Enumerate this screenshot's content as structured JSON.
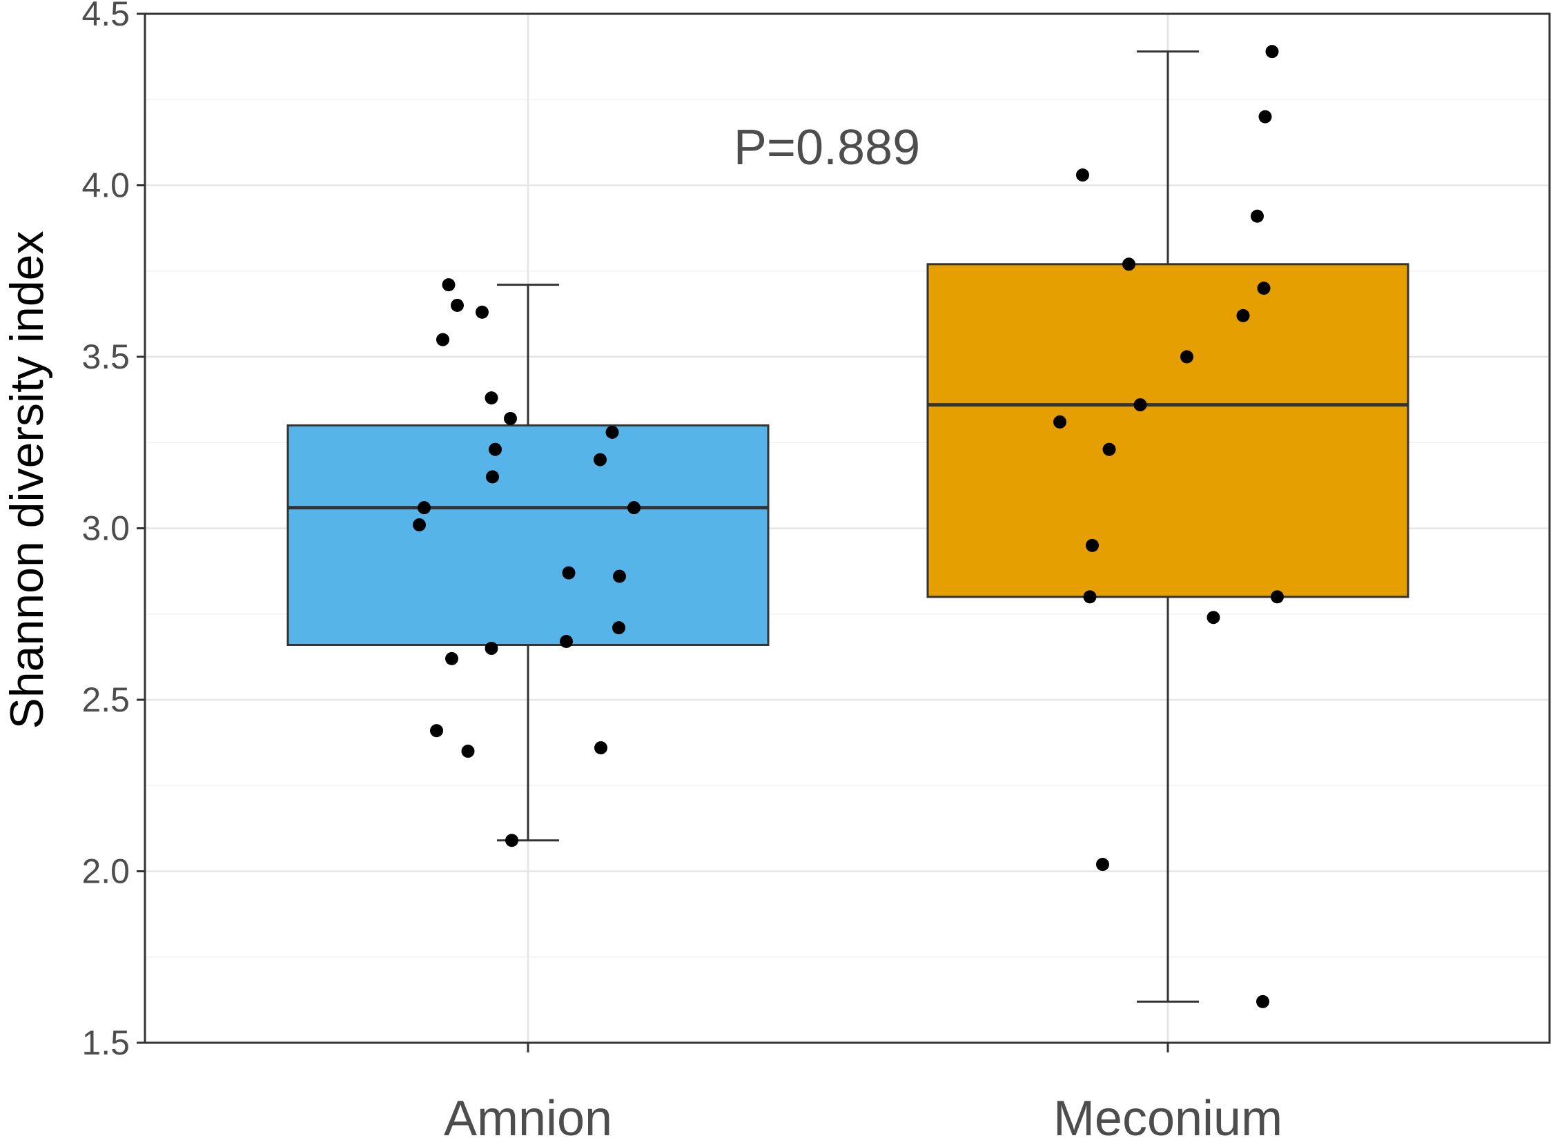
{
  "chart_data": {
    "type": "box",
    "title": "",
    "xlabel": "",
    "ylabel": "Shannon diversity index",
    "ylim": [
      1.5,
      4.5
    ],
    "yticks": [
      "1.5",
      "2.0",
      "2.5",
      "3.0",
      "3.5",
      "4.0",
      "4.5"
    ],
    "grid": true,
    "annotation": "P=0.889",
    "categories": [
      "Amnion",
      "Meconium"
    ],
    "series": [
      {
        "name": "Amnion",
        "color": "#56b4e9",
        "whisker_low": 2.09,
        "q1": 2.66,
        "median": 3.06,
        "q3": 3.3,
        "whisker_high": 3.71,
        "points": [
          {
            "jitter": -0.23,
            "y": 3.71
          },
          {
            "jitter": -0.205,
            "y": 3.65
          },
          {
            "jitter": -0.247,
            "y": 3.55
          },
          {
            "jitter": -0.133,
            "y": 3.63
          },
          {
            "jitter": -0.106,
            "y": 3.38
          },
          {
            "jitter": -0.051,
            "y": 3.32
          },
          {
            "jitter": -0.095,
            "y": 3.23
          },
          {
            "jitter": -0.103,
            "y": 3.15
          },
          {
            "jitter": 0.244,
            "y": 3.28
          },
          {
            "jitter": 0.209,
            "y": 3.2
          },
          {
            "jitter": 0.307,
            "y": 3.06
          },
          {
            "jitter": -0.301,
            "y": 3.06
          },
          {
            "jitter": -0.315,
            "y": 3.01
          },
          {
            "jitter": 0.118,
            "y": 2.87
          },
          {
            "jitter": 0.265,
            "y": 2.86
          },
          {
            "jitter": 0.263,
            "y": 2.71
          },
          {
            "jitter": 0.111,
            "y": 2.67
          },
          {
            "jitter": -0.106,
            "y": 2.65
          },
          {
            "jitter": -0.221,
            "y": 2.62
          },
          {
            "jitter": -0.265,
            "y": 2.41
          },
          {
            "jitter": -0.174,
            "y": 2.35
          },
          {
            "jitter": 0.211,
            "y": 2.36
          },
          {
            "jitter": -0.047,
            "y": 2.09
          }
        ]
      },
      {
        "name": "Meconium",
        "color": "#e69f00",
        "whisker_low": 1.62,
        "q1": 2.8,
        "median": 3.36,
        "q3": 3.77,
        "whisker_high": 4.39,
        "points": [
          {
            "jitter": 0.302,
            "y": 4.39
          },
          {
            "jitter": 0.282,
            "y": 4.2
          },
          {
            "jitter": 0.259,
            "y": 3.91
          },
          {
            "jitter": -0.247,
            "y": 4.03
          },
          {
            "jitter": -0.113,
            "y": 3.77
          },
          {
            "jitter": 0.278,
            "y": 3.7
          },
          {
            "jitter": 0.218,
            "y": 3.62
          },
          {
            "jitter": 0.055,
            "y": 3.5
          },
          {
            "jitter": -0.08,
            "y": 3.36
          },
          {
            "jitter": -0.313,
            "y": 3.31
          },
          {
            "jitter": -0.17,
            "y": 3.23
          },
          {
            "jitter": -0.219,
            "y": 2.95
          },
          {
            "jitter": -0.226,
            "y": 2.8
          },
          {
            "jitter": 0.317,
            "y": 2.8
          },
          {
            "jitter": 0.132,
            "y": 2.74
          },
          {
            "jitter": -0.189,
            "y": 2.02
          },
          {
            "jitter": 0.275,
            "y": 1.62
          }
        ]
      }
    ]
  }
}
